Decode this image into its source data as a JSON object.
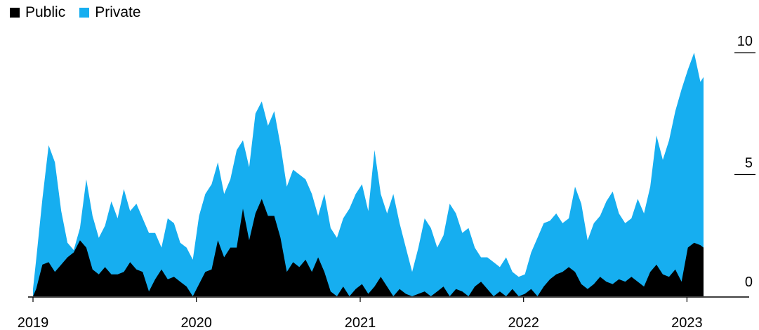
{
  "chart_data": {
    "type": "area",
    "stacked": true,
    "legend": {
      "placement": "top-left"
    },
    "series": [
      {
        "name": "Public",
        "color": "#000000"
      },
      {
        "name": "Private",
        "color": "#16aef0"
      }
    ],
    "ylim": [
      0,
      10
    ],
    "yticks": [
      "10",
      "5",
      "0"
    ],
    "xticks": [
      "2019",
      "2020",
      "2021",
      "2022",
      "2023"
    ],
    "x_start": "2019-01",
    "x_end": "2023-03",
    "points": [
      [
        "2019-01-01",
        0,
        0.3
      ],
      [
        "2019-01-08",
        0.3,
        1.5
      ],
      [
        "2019-01-22",
        1.3,
        4.0
      ],
      [
        "2019-02-05",
        1.4,
        6.2
      ],
      [
        "2019-02-19",
        1.0,
        5.5
      ],
      [
        "2019-03-05",
        1.3,
        3.5
      ],
      [
        "2019-03-19",
        1.6,
        2.2
      ],
      [
        "2019-04-02",
        1.8,
        1.9
      ],
      [
        "2019-04-16",
        2.3,
        2.8
      ],
      [
        "2019-04-30",
        2.0,
        4.8
      ],
      [
        "2019-05-14",
        1.1,
        3.3
      ],
      [
        "2019-05-28",
        0.9,
        2.4
      ],
      [
        "2019-06-11",
        1.2,
        2.9
      ],
      [
        "2019-06-25",
        0.9,
        3.9
      ],
      [
        "2019-07-09",
        0.9,
        3.2
      ],
      [
        "2019-07-23",
        1.0,
        4.4
      ],
      [
        "2019-08-06",
        1.4,
        3.5
      ],
      [
        "2019-08-20",
        1.1,
        3.8
      ],
      [
        "2019-09-03",
        1.0,
        3.2
      ],
      [
        "2019-09-17",
        0.2,
        2.6
      ],
      [
        "2019-10-01",
        0.7,
        2.6
      ],
      [
        "2019-10-15",
        1.1,
        2.0
      ],
      [
        "2019-10-29",
        0.7,
        3.2
      ],
      [
        "2019-11-12",
        0.8,
        3.0
      ],
      [
        "2019-11-26",
        0.6,
        2.2
      ],
      [
        "2019-12-10",
        0.4,
        2.0
      ],
      [
        "2019-12-24",
        0.0,
        1.5
      ],
      [
        "2020-01-07",
        0.5,
        3.3
      ],
      [
        "2020-01-21",
        1.0,
        4.2
      ],
      [
        "2020-02-04",
        1.1,
        4.6
      ],
      [
        "2020-02-18",
        2.3,
        5.5
      ],
      [
        "2020-03-03",
        1.6,
        4.2
      ],
      [
        "2020-03-17",
        2.0,
        4.8
      ],
      [
        "2020-03-31",
        2.0,
        6.0
      ],
      [
        "2020-04-14",
        3.6,
        6.4
      ],
      [
        "2020-04-28",
        2.3,
        5.3
      ],
      [
        "2020-05-12",
        3.4,
        7.5
      ],
      [
        "2020-05-26",
        4.0,
        8.0
      ],
      [
        "2020-06-09",
        3.3,
        7.0
      ],
      [
        "2020-06-23",
        3.3,
        7.6
      ],
      [
        "2020-07-07",
        2.4,
        6.2
      ],
      [
        "2020-07-21",
        1.0,
        4.5
      ],
      [
        "2020-08-04",
        1.4,
        5.2
      ],
      [
        "2020-08-18",
        1.2,
        5.0
      ],
      [
        "2020-09-01",
        1.5,
        4.8
      ],
      [
        "2020-09-15",
        1.0,
        4.2
      ],
      [
        "2020-09-29",
        1.6,
        3.3
      ],
      [
        "2020-10-13",
        1.0,
        4.2
      ],
      [
        "2020-10-27",
        0.2,
        2.8
      ],
      [
        "2020-11-10",
        0.0,
        2.4
      ],
      [
        "2020-11-24",
        0.4,
        3.2
      ],
      [
        "2020-12-08",
        0.0,
        3.6
      ],
      [
        "2020-12-22",
        0.3,
        4.2
      ],
      [
        "2021-01-05",
        0.5,
        4.6
      ],
      [
        "2021-01-19",
        0.1,
        3.5
      ],
      [
        "2021-02-02",
        0.4,
        6.0
      ],
      [
        "2021-02-16",
        0.8,
        4.2
      ],
      [
        "2021-03-02",
        0.4,
        3.4
      ],
      [
        "2021-03-16",
        0.0,
        4.2
      ],
      [
        "2021-03-30",
        0.3,
        3.0
      ],
      [
        "2021-04-13",
        0.1,
        2.0
      ],
      [
        "2021-04-27",
        0.0,
        1.0
      ],
      [
        "2021-05-11",
        0.1,
        2.0
      ],
      [
        "2021-05-25",
        0.2,
        3.2
      ],
      [
        "2021-06-08",
        0.0,
        2.8
      ],
      [
        "2021-06-22",
        0.2,
        2.0
      ],
      [
        "2021-07-06",
        0.4,
        2.5
      ],
      [
        "2021-07-20",
        0.0,
        3.8
      ],
      [
        "2021-08-03",
        0.3,
        3.4
      ],
      [
        "2021-08-17",
        0.2,
        2.6
      ],
      [
        "2021-08-31",
        0.0,
        2.8
      ],
      [
        "2021-09-14",
        0.4,
        2.0
      ],
      [
        "2021-09-28",
        0.6,
        1.6
      ],
      [
        "2021-10-12",
        0.3,
        1.6
      ],
      [
        "2021-10-26",
        0.0,
        1.4
      ],
      [
        "2021-11-09",
        0.2,
        1.2
      ],
      [
        "2021-11-23",
        0.0,
        1.6
      ],
      [
        "2021-12-07",
        0.3,
        1.0
      ],
      [
        "2021-12-21",
        0.0,
        0.8
      ],
      [
        "2022-01-04",
        0.1,
        0.9
      ],
      [
        "2022-01-18",
        0.3,
        1.8
      ],
      [
        "2022-02-01",
        0.0,
        2.4
      ],
      [
        "2022-02-15",
        0.4,
        3.0
      ],
      [
        "2022-03-01",
        0.7,
        3.1
      ],
      [
        "2022-03-15",
        0.9,
        3.4
      ],
      [
        "2022-03-29",
        1.0,
        3.0
      ],
      [
        "2022-04-12",
        1.2,
        3.2
      ],
      [
        "2022-04-26",
        1.0,
        4.5
      ],
      [
        "2022-05-10",
        0.5,
        3.8
      ],
      [
        "2022-05-24",
        0.3,
        2.3
      ],
      [
        "2022-06-07",
        0.5,
        3.0
      ],
      [
        "2022-06-21",
        0.8,
        3.3
      ],
      [
        "2022-07-05",
        0.6,
        3.9
      ],
      [
        "2022-07-19",
        0.5,
        4.3
      ],
      [
        "2022-08-02",
        0.7,
        3.4
      ],
      [
        "2022-08-16",
        0.6,
        3.0
      ],
      [
        "2022-08-30",
        0.8,
        3.2
      ],
      [
        "2022-09-13",
        0.6,
        4.0
      ],
      [
        "2022-09-27",
        0.4,
        3.4
      ],
      [
        "2022-10-11",
        1.0,
        4.5
      ],
      [
        "2022-10-25",
        1.3,
        6.6
      ],
      [
        "2022-11-08",
        0.9,
        5.6
      ],
      [
        "2022-11-22",
        0.8,
        6.4
      ],
      [
        "2022-12-06",
        1.1,
        7.6
      ],
      [
        "2022-12-20",
        0.6,
        8.5
      ],
      [
        "2023-01-03",
        2.0,
        9.3
      ],
      [
        "2023-01-17",
        2.2,
        10.0
      ],
      [
        "2023-01-31",
        2.1,
        8.8
      ],
      [
        "2023-02-07",
        2.0,
        9.0
      ]
    ]
  }
}
